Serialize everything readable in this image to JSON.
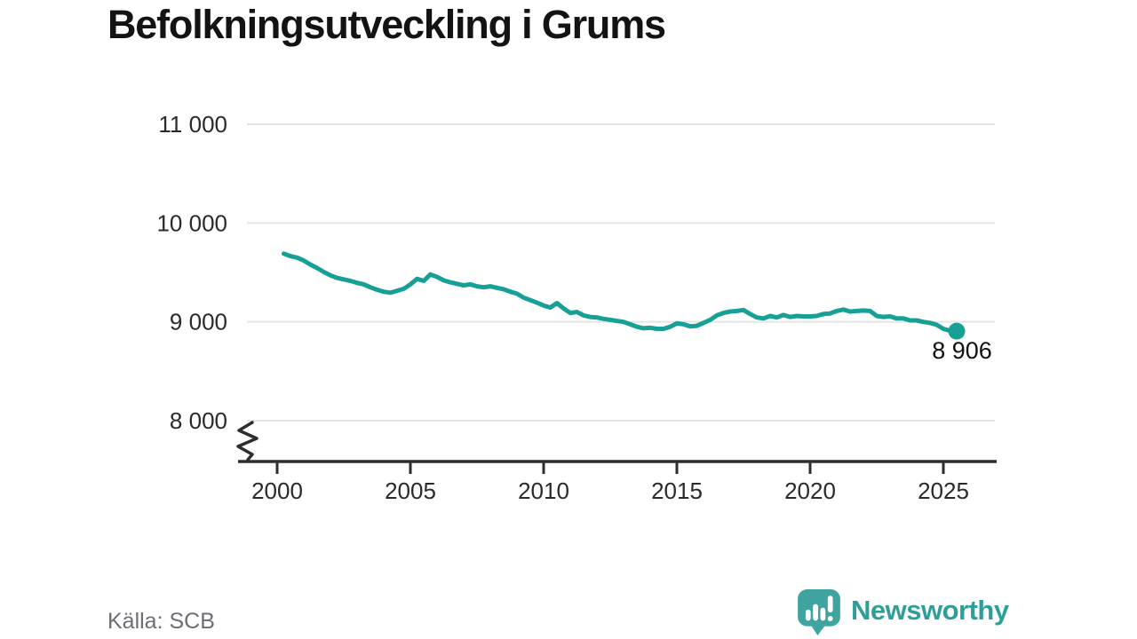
{
  "title": "Befolkningsutveckling i Grums",
  "source": "Källa: SCB",
  "branding": {
    "name": "Newsworthy",
    "icon": "newsworthy-speech-bubble-barchart-icon",
    "color": "#2d9e98",
    "icon_color": "#3fa3a0"
  },
  "colors": {
    "line": "#16a096",
    "marker": "#16a096",
    "grid": "#e4e4e4",
    "axis": "#2e2e2e",
    "tick_text": "#2a2a2a",
    "annotation_text": "#111111"
  },
  "chart_data": {
    "type": "line",
    "title": "Befolkningsutveckling i Grums",
    "xlabel": "",
    "ylabel": "",
    "grid": "horizontal-only",
    "legend": "none",
    "y_axis": {
      "broken_axis_symbol": true,
      "ticks": [
        {
          "value": 11000,
          "label": "11 000"
        },
        {
          "value": 10000,
          "label": "10 000"
        },
        {
          "value": 9000,
          "label": "9 000"
        },
        {
          "value": 8000,
          "label": "8 000"
        }
      ]
    },
    "x_axis": {
      "ticks": [
        {
          "value": 2000,
          "label": "2000"
        },
        {
          "value": 2005,
          "label": "2005"
        },
        {
          "value": 2010,
          "label": "2010"
        },
        {
          "value": 2015,
          "label": "2015"
        },
        {
          "value": 2020,
          "label": "2020"
        },
        {
          "value": 2025,
          "label": "2025"
        }
      ]
    },
    "series": [
      {
        "name": "befolkning",
        "x_start": 2000.25,
        "x_step": 0.25,
        "values": [
          9690,
          9665,
          9650,
          9620,
          9580,
          9545,
          9505,
          9470,
          9445,
          9430,
          9415,
          9395,
          9380,
          9350,
          9325,
          9305,
          9295,
          9315,
          9335,
          9380,
          9435,
          9415,
          9480,
          9455,
          9420,
          9400,
          9385,
          9370,
          9380,
          9360,
          9350,
          9360,
          9345,
          9330,
          9305,
          9285,
          9245,
          9220,
          9195,
          9165,
          9145,
          9190,
          9135,
          9090,
          9100,
          9065,
          9050,
          9045,
          9030,
          9020,
          9010,
          9000,
          8975,
          8950,
          8935,
          8940,
          8930,
          8930,
          8950,
          8985,
          8975,
          8955,
          8960,
          8990,
          9020,
          9065,
          9090,
          9105,
          9110,
          9120,
          9080,
          9045,
          9035,
          9060,
          9045,
          9070,
          9050,
          9060,
          9055,
          9055,
          9060,
          9080,
          9085,
          9110,
          9125,
          9105,
          9110,
          9115,
          9110,
          9060,
          9050,
          9055,
          9035,
          9035,
          9015,
          9015,
          9000,
          8990,
          8970,
          8930,
          8910,
          8906
        ]
      }
    ],
    "end_label": "8 906",
    "end_value": 8906
  }
}
